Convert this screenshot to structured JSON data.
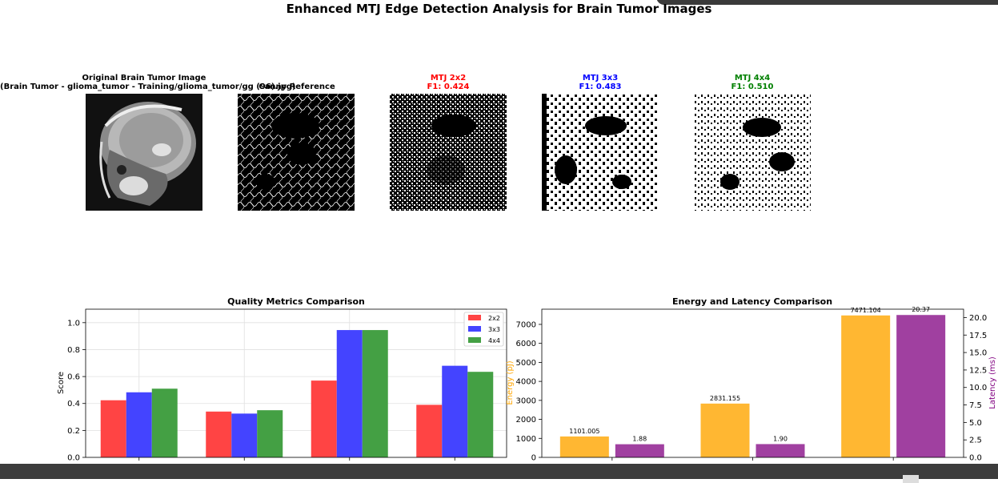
{
  "suptitle": "Enhanced MTJ Edge Detection Analysis for Brain Tumor Images",
  "images": [
    {
      "title_line1": "Original Brain Tumor Image",
      "title_line2": "(Brain Tumor - glioma_tumor - Training/glioma_tumor/gg (96).jpg)",
      "color": "#000000"
    },
    {
      "title_line1": "Canny Reference",
      "title_line2": "",
      "color": "#000000"
    },
    {
      "title_line1": "MTJ 2x2",
      "title_line2": "F1: 0.424",
      "color": "#ff0000"
    },
    {
      "title_line1": "MTJ 3x3",
      "title_line2": "F1: 0.483",
      "color": "#0000ff"
    },
    {
      "title_line1": "MTJ 4x4",
      "title_line2": "F1: 0.510",
      "color": "#008000"
    }
  ],
  "chart_data": [
    {
      "type": "bar",
      "title": "Quality Metrics Comparison",
      "ylabel": "Score",
      "xlabel": "",
      "ylim": [
        0,
        1.1
      ],
      "yticks": [
        "0.0",
        "0.2",
        "0.4",
        "0.6",
        "0.8",
        "1.0"
      ],
      "grid": true,
      "legend_position": "top-right",
      "groups": 4,
      "series": [
        {
          "name": "2x2",
          "color": "#ff4444",
          "values": [
            0.424,
            0.34,
            0.57,
            0.39
          ]
        },
        {
          "name": "3x3",
          "color": "#4444ff",
          "values": [
            0.483,
            0.325,
            0.945,
            0.68
          ]
        },
        {
          "name": "4x4",
          "color": "#44a044",
          "values": [
            0.51,
            0.35,
            0.945,
            0.635
          ]
        }
      ]
    },
    {
      "type": "bar",
      "title": "Energy and Latency Comparison",
      "ylabel": "Energy (pJ)",
      "ylabel_right": "Latency (ms)",
      "ylim": [
        0,
        7800
      ],
      "ylim_right": [
        0,
        21.2
      ],
      "yticks": [
        "0",
        "1000",
        "2000",
        "3000",
        "4000",
        "5000",
        "6000",
        "7000"
      ],
      "yticks_right": [
        "0.0",
        "2.5",
        "5.0",
        "7.5",
        "10.0",
        "12.5",
        "15.0",
        "17.5",
        "20.0"
      ],
      "energy": {
        "color": "#ffb732",
        "values": [
          1101.005,
          2831.155,
          7471.104
        ],
        "labels": [
          "1101.005",
          "2831.155",
          "7471.104"
        ]
      },
      "latency": {
        "color": "#a040a0",
        "values": [
          1.88,
          1.9,
          20.37
        ],
        "labels": [
          "1.88",
          "1.90",
          "20.37"
        ]
      }
    }
  ]
}
